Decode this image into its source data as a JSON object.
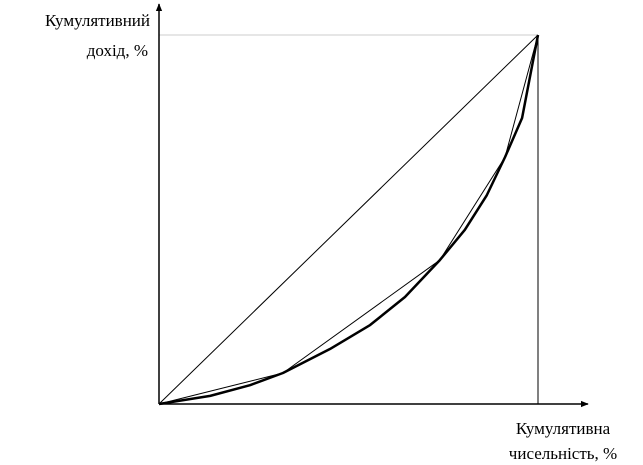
{
  "chart_data": {
    "type": "line",
    "ylabel": [
      "Кумулятивний",
      "дохід, %"
    ],
    "xlabel": [
      "Кумулятивна",
      "чисельність, %"
    ],
    "xlim": [
      0,
      100
    ],
    "ylim": [
      0,
      100
    ],
    "series": [
      {
        "color": "#000000",
        "line_width": 1,
        "x": [
          0,
          100
        ],
        "values": [
          0,
          100
        ]
      },
      {
        "color": "#000000",
        "line_width": 1,
        "x": [
          0,
          32.7,
          74.1,
          91.3,
          100
        ],
        "values": [
          0,
          8.4,
          39.0,
          66.9,
          100
        ]
      },
      {
        "color": "#000000",
        "line_width": 2.5,
        "x": [
          0,
          13.5,
          24,
          32.7,
          45.1,
          55.7,
          64.9,
          74.1,
          80.7,
          86.5,
          91.3,
          95.8,
          100
        ],
        "values": [
          0,
          2.2,
          5.1,
          8.4,
          14.9,
          21.4,
          29,
          39.0,
          47.2,
          56.6,
          66.9,
          77.5,
          100
        ]
      }
    ]
  }
}
